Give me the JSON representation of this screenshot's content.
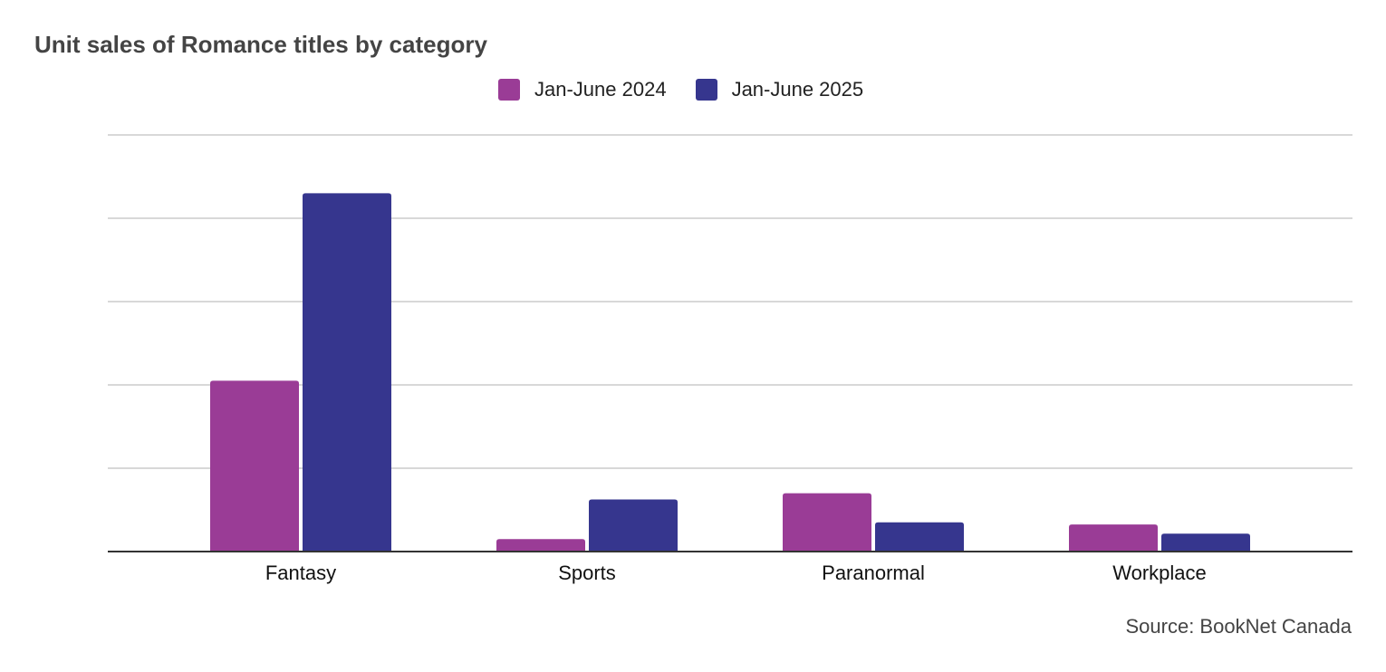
{
  "source": "Source: BookNet Canada",
  "chart_data": {
    "type": "bar",
    "title": "Unit sales of Romance titles by category",
    "categories": [
      "Fantasy",
      "Sports",
      "Paranormal",
      "Workplace"
    ],
    "series": [
      {
        "name": "Jan-June 2024",
        "color": "#9a3c96",
        "values": [
          41,
          3,
          14,
          6.5
        ]
      },
      {
        "name": "Jan-June 2025",
        "color": "#36368e",
        "values": [
          86,
          12.5,
          7,
          4.3
        ]
      }
    ],
    "ylim": [
      0,
      100
    ],
    "y_gridlines": [
      0,
      20,
      40,
      60,
      80,
      100
    ],
    "y_tick_labels_shown": false,
    "grid": true,
    "legend_position": "top-center"
  }
}
